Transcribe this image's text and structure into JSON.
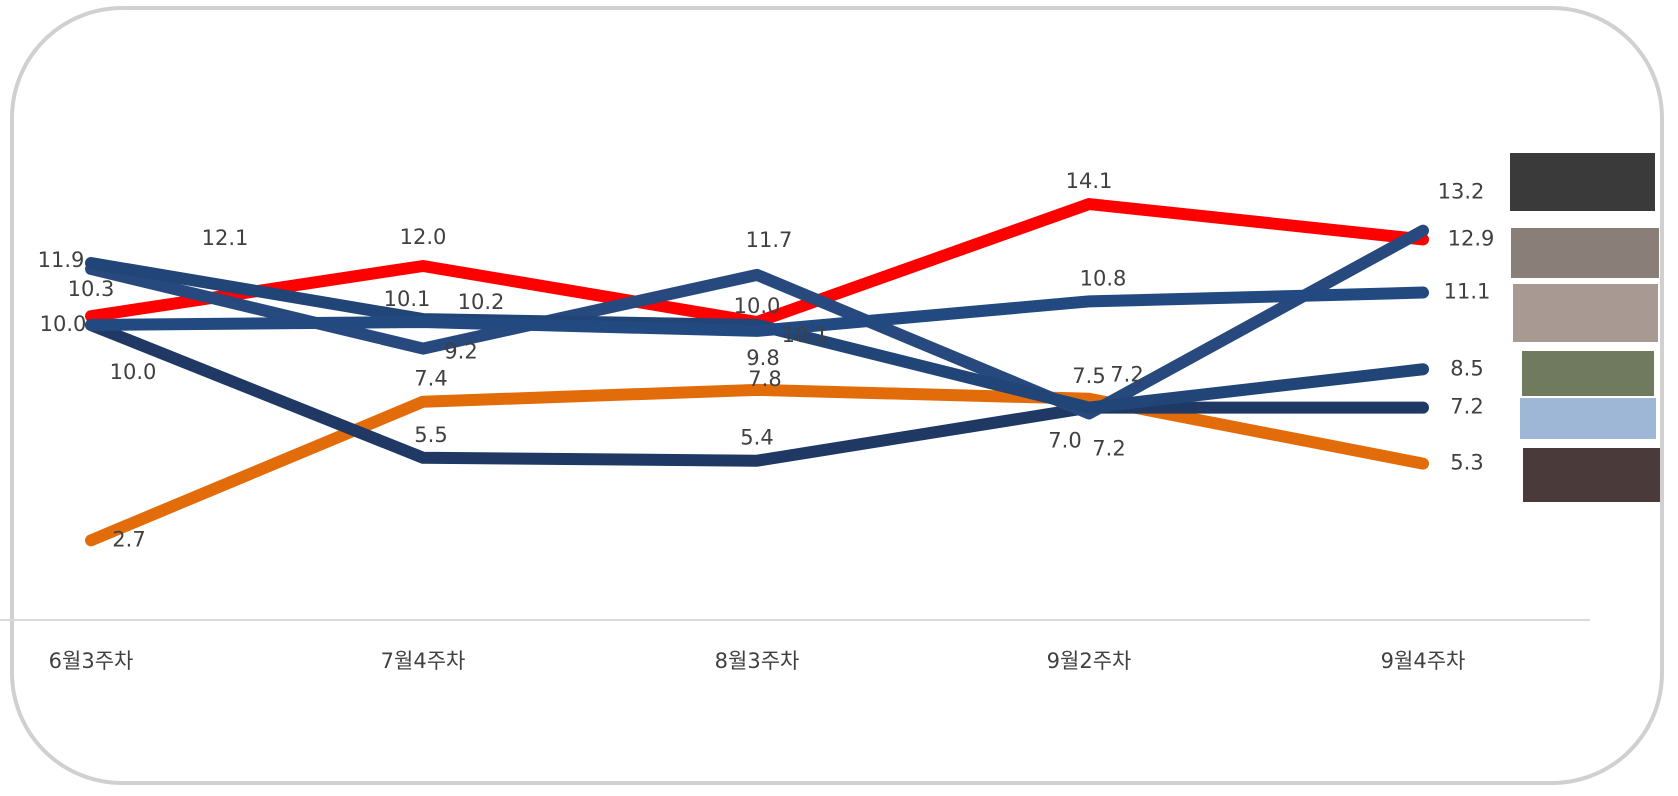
{
  "chart_data": {
    "type": "line",
    "categories": [
      "6월3주차",
      "7월4주차",
      "8월3주차",
      "9월2주차",
      "9월4주차"
    ],
    "ylim": [
      0,
      20
    ],
    "series": [
      {
        "color": "#ff0000",
        "values": [
          10.3,
          12.0,
          10.1,
          14.1,
          12.9
        ],
        "value_labels": [
          "10.3",
          "12.0",
          "10.1",
          "14.1",
          "12.9"
        ]
      },
      {
        "color": "#e36c0a",
        "values": [
          2.7,
          7.4,
          7.8,
          7.5,
          5.3
        ],
        "value_labels": [
          "2.7",
          "7.4",
          "7.8",
          "7.5",
          "5.3"
        ]
      },
      {
        "color": "#1f3864",
        "values": [
          10.0,
          5.5,
          5.4,
          7.2,
          7.2
        ],
        "value_labels": [
          "10.0",
          "5.5",
          "5.4",
          "7.2",
          "7.2"
        ]
      },
      {
        "color": "#27497d",
        "values": [
          11.9,
          9.2,
          11.7,
          7.0,
          13.2
        ],
        "value_labels": [
          "11.9",
          "9.2",
          "11.7",
          "7.0",
          "13.2"
        ]
      },
      {
        "color": "#224578",
        "values": [
          12.1,
          10.2,
          10.0,
          7.2,
          8.5
        ],
        "value_labels": [
          "12.1",
          "10.2",
          "10.0",
          "7.2",
          "8.5"
        ]
      },
      {
        "color": "#234a80",
        "values": [
          10.0,
          10.1,
          9.8,
          10.8,
          11.1
        ],
        "value_labels": [
          "10.0",
          "10.1",
          "9.8",
          "10.8",
          "11.1"
        ]
      }
    ]
  }
}
